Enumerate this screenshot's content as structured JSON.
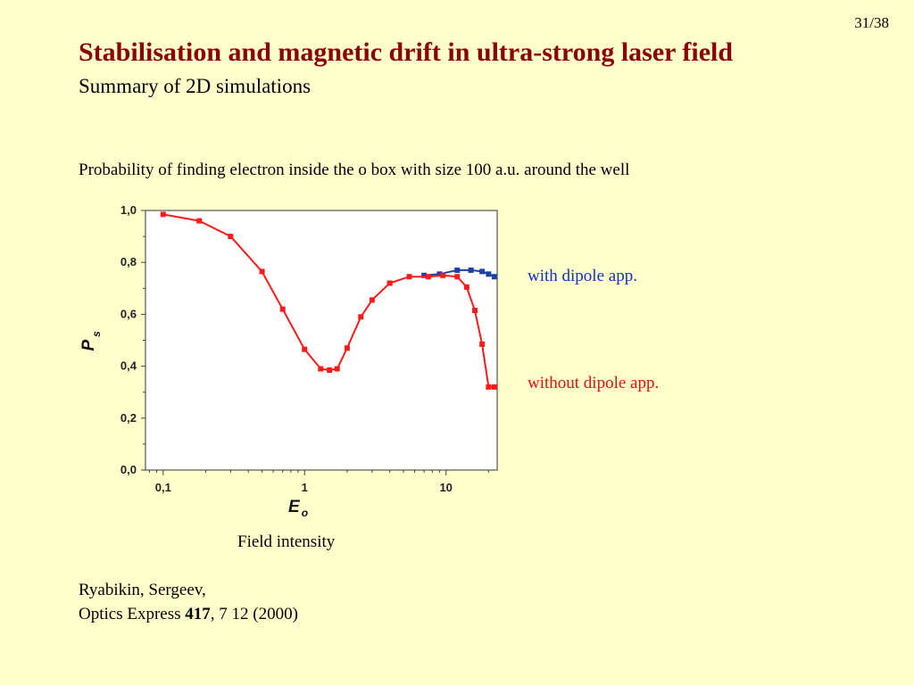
{
  "slide": {
    "page_number": "31/38",
    "title": "Stabilisation and magnetic drift in ultra-strong laser field",
    "subtitle": "Summary of 2D simulations",
    "caption": "Probability of finding electron inside the o box with size 100 a.u. around the well",
    "legend_with": "with dipole app.",
    "legend_without": "without dipole app.",
    "field_label": "Field intensity",
    "reference_authors": "Ryabikin, Sergeev,",
    "reference_journal_prefix": "Optics Express ",
    "reference_volume": "417",
    "reference_suffix": ", 7 12 (2000)"
  },
  "chart_data": {
    "type": "line",
    "xlabel_main": "E",
    "xlabel_sub": "o",
    "ylabel_main": "P",
    "ylabel_sub": "s",
    "xscale": "log",
    "xlim": [
      0.075,
      23
    ],
    "ylim": [
      0.0,
      1.0
    ],
    "x_ticks": [
      0.1,
      1,
      10
    ],
    "x_tick_labels": [
      "0,1",
      "1",
      "10"
    ],
    "y_ticks": [
      0.0,
      0.2,
      0.4,
      0.6,
      0.8,
      1.0
    ],
    "y_tick_labels": [
      "0,0",
      "0,2",
      "0,4",
      "0,6",
      "0,8",
      "1,0"
    ],
    "grid": false,
    "series": [
      {
        "color": "#1f3fa8",
        "x": [
          7.0,
          9.0,
          12.0,
          15.0,
          18.0,
          20.0,
          22.0
        ],
        "y": [
          0.75,
          0.755,
          0.77,
          0.77,
          0.765,
          0.755,
          0.745
        ]
      },
      {
        "color": "#ff1a1a",
        "x": [
          0.1,
          0.18,
          0.3,
          0.5,
          0.7,
          1.0,
          1.3,
          1.5,
          1.7,
          2.0,
          2.5,
          3.0,
          4.0,
          5.5,
          7.5,
          9.5,
          12.0,
          14.0,
          16.0,
          18.0,
          20.0,
          22.0
        ],
        "y": [
          0.985,
          0.96,
          0.9,
          0.765,
          0.62,
          0.465,
          0.39,
          0.385,
          0.39,
          0.47,
          0.59,
          0.655,
          0.72,
          0.745,
          0.745,
          0.75,
          0.745,
          0.705,
          0.615,
          0.485,
          0.32,
          0.32
        ]
      }
    ]
  }
}
